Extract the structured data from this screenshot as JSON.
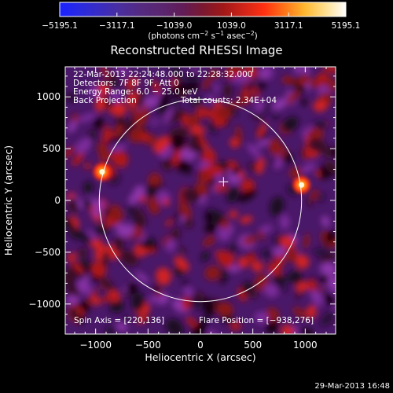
{
  "chart_data": {
    "type": "heatmap",
    "title": "Reconstructed RHESSI Image",
    "xlabel": "Heliocentric X (arcsec)",
    "ylabel": "Heliocentric Y (arcsec)",
    "xlim": [
      -1290,
      1290
    ],
    "ylim": [
      -1290,
      1290
    ],
    "x_ticks": [
      -1000,
      -500,
      0,
      500,
      1000
    ],
    "y_ticks": [
      -1000,
      -500,
      0,
      500,
      1000
    ],
    "x_tick_labels": [
      "−1000",
      "−500",
      "0",
      "500",
      "1000"
    ],
    "y_tick_labels": [
      "−1000",
      "−500",
      "0",
      "500",
      "1000"
    ],
    "colorbar": {
      "ticks": [
        -5195.1,
        -3117.1,
        -1039.0,
        1039.0,
        3117.1,
        5195.1
      ],
      "tick_labels": [
        "−5195.1",
        "−3117.1",
        "−1039.0",
        "1039.0",
        "3117.1",
        "5195.1"
      ],
      "unit_prefix": "(photons cm",
      "unit_exp1": "−2",
      "unit_mid": " s",
      "unit_exp2": "−1",
      "unit_mid2": " asec",
      "unit_exp3": "−2",
      "unit_suffix": ")",
      "colors": [
        "#1a22ff",
        "#2a2ae0",
        "#3a2cc0",
        "#4a2e9c",
        "#552a80",
        "#5a2670",
        "#611c58",
        "#7a1830",
        "#a01818",
        "#d02418",
        "#ff3010",
        "#ff7418",
        "#ffb830",
        "#ffe090",
        "#ffffff"
      ]
    },
    "annotations": {
      "time_range": "22-Mar-2013 22:24:48.000 to 22:28:32.000",
      "detectors": "Detectors: 7F 8F 9F, Att 0",
      "energy_range": "Energy Range: 6.0 − 25.0 keV",
      "method": "Back Projection",
      "total_counts": "Total counts: 2.34E+04",
      "spin_axis": "Spin Axis = [220,136]",
      "flare_position": "Flare Position = [−938,276]",
      "creation_date": "29-Mar-2013 16:48"
    },
    "solar_limb": {
      "center": [
        0,
        0
      ],
      "radius_arcsec": 965
    },
    "sun_center_marker": [
      220,
      180
    ],
    "bright_sources": [
      {
        "x": -938,
        "y": 276,
        "level": 5195.1
      },
      {
        "x": 965,
        "y": 150,
        "level": 5195.1
      }
    ]
  }
}
